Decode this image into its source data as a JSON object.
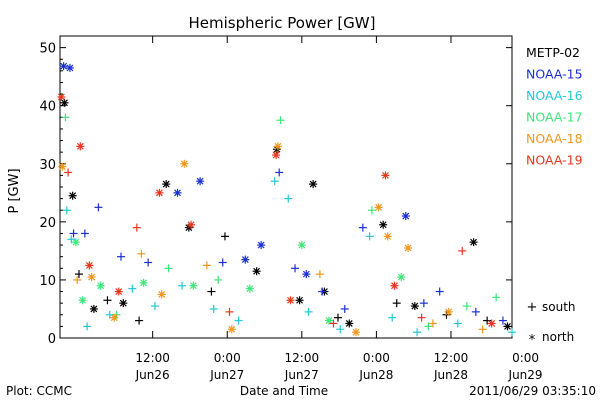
{
  "chart_data": {
    "type": "scatter",
    "title": "Hemispheric Power [GW]",
    "xlabel": "Date and Time",
    "ylabel": "P [GW]",
    "ylim": [
      0,
      52
    ],
    "xlim": [
      0,
      100
    ],
    "yticks": [
      0,
      10,
      20,
      30,
      40,
      50
    ],
    "xticks": [
      {
        "x": 20.5,
        "time": "12:00",
        "date": "Jun26"
      },
      {
        "x": 37.0,
        "time": "0:00",
        "date": "Jun27"
      },
      {
        "x": 53.5,
        "time": "12:00",
        "date": "Jun27"
      },
      {
        "x": 70.0,
        "time": "0:00",
        "date": "Jun28"
      },
      {
        "x": 86.5,
        "time": "12:00",
        "date": "Jun28"
      },
      {
        "x": 103.0,
        "time": "0:00",
        "date": "Jun29"
      }
    ],
    "grid": false,
    "legend_position": "right",
    "series": [
      {
        "name": "METP-02",
        "color": "#000000"
      },
      {
        "name": "NOAA-15",
        "color": "#1a2fd0"
      },
      {
        "name": "NOAA-16",
        "color": "#22c8d8"
      },
      {
        "name": "NOAA-17",
        "color": "#3ee67a"
      },
      {
        "name": "NOAA-18",
        "color": "#f0961e"
      },
      {
        "name": "NOAA-19",
        "color": "#e8351e"
      }
    ],
    "markers": {
      "plus": "south",
      "star": "north"
    },
    "points": [
      {
        "s": 0,
        "m": "star",
        "x": 1.0,
        "y": 40.5
      },
      {
        "s": 0,
        "m": "star",
        "x": 2.8,
        "y": 24.5
      },
      {
        "s": 0,
        "m": "plus",
        "x": 4.2,
        "y": 11.0
      },
      {
        "s": 0,
        "m": "star",
        "x": 7.5,
        "y": 5.0
      },
      {
        "s": 0,
        "m": "plus",
        "x": 10.5,
        "y": 6.5
      },
      {
        "s": 0,
        "m": "star",
        "x": 14.0,
        "y": 6.0
      },
      {
        "s": 0,
        "m": "plus",
        "x": 17.5,
        "y": 3.0
      },
      {
        "s": 0,
        "m": "star",
        "x": 23.5,
        "y": 26.5
      },
      {
        "s": 0,
        "m": "star",
        "x": 28.5,
        "y": 19.0
      },
      {
        "s": 0,
        "m": "plus",
        "x": 33.5,
        "y": 8.0
      },
      {
        "s": 0,
        "m": "plus",
        "x": 36.5,
        "y": 17.5
      },
      {
        "s": 0,
        "m": "star",
        "x": 43.5,
        "y": 11.5
      },
      {
        "s": 0,
        "m": "star",
        "x": 48.0,
        "y": 32.5
      },
      {
        "s": 0,
        "m": "star",
        "x": 53.0,
        "y": 6.5
      },
      {
        "s": 0,
        "m": "star",
        "x": 56.0,
        "y": 26.5
      },
      {
        "s": 0,
        "m": "star",
        "x": 58.5,
        "y": 8.0
      },
      {
        "s": 0,
        "m": "plus",
        "x": 61.5,
        "y": 3.5
      },
      {
        "s": 0,
        "m": "star",
        "x": 64.0,
        "y": 2.5
      },
      {
        "s": 0,
        "m": "star",
        "x": 71.5,
        "y": 19.5
      },
      {
        "s": 0,
        "m": "plus",
        "x": 74.5,
        "y": 6.0
      },
      {
        "s": 0,
        "m": "star",
        "x": 78.5,
        "y": 5.5
      },
      {
        "s": 0,
        "m": "plus",
        "x": 85.5,
        "y": 4.0
      },
      {
        "s": 0,
        "m": "star",
        "x": 91.5,
        "y": 16.5
      },
      {
        "s": 0,
        "m": "plus",
        "x": 94.5,
        "y": 3.0
      },
      {
        "s": 0,
        "m": "star",
        "x": 99.0,
        "y": 2.0
      },
      {
        "s": 1,
        "m": "star",
        "x": 0.8,
        "y": 46.8
      },
      {
        "s": 1,
        "m": "star",
        "x": 2.2,
        "y": 46.5
      },
      {
        "s": 1,
        "m": "plus",
        "x": 3.0,
        "y": 18.0
      },
      {
        "s": 1,
        "m": "plus",
        "x": 5.5,
        "y": 18.0
      },
      {
        "s": 1,
        "m": "plus",
        "x": 8.5,
        "y": 22.5
      },
      {
        "s": 1,
        "m": "plus",
        "x": 13.5,
        "y": 14.0
      },
      {
        "s": 1,
        "m": "plus",
        "x": 19.5,
        "y": 13.0
      },
      {
        "s": 1,
        "m": "star",
        "x": 26.0,
        "y": 25.0
      },
      {
        "s": 1,
        "m": "star",
        "x": 31.0,
        "y": 27.0
      },
      {
        "s": 1,
        "m": "plus",
        "x": 36.0,
        "y": 13.0
      },
      {
        "s": 1,
        "m": "star",
        "x": 41.0,
        "y": 13.5
      },
      {
        "s": 1,
        "m": "star",
        "x": 44.5,
        "y": 16.0
      },
      {
        "s": 1,
        "m": "plus",
        "x": 48.5,
        "y": 28.5
      },
      {
        "s": 1,
        "m": "plus",
        "x": 52.0,
        "y": 12.0
      },
      {
        "s": 1,
        "m": "star",
        "x": 54.5,
        "y": 11.0
      },
      {
        "s": 1,
        "m": "plus",
        "x": 58.0,
        "y": 8.0
      },
      {
        "s": 1,
        "m": "plus",
        "x": 63.0,
        "y": 5.0
      },
      {
        "s": 1,
        "m": "plus",
        "x": 67.0,
        "y": 19.0
      },
      {
        "s": 1,
        "m": "star",
        "x": 76.5,
        "y": 21.0
      },
      {
        "s": 1,
        "m": "plus",
        "x": 80.5,
        "y": 6.0
      },
      {
        "s": 1,
        "m": "plus",
        "x": 84.0,
        "y": 8.0
      },
      {
        "s": 1,
        "m": "plus",
        "x": 92.0,
        "y": 4.5
      },
      {
        "s": 1,
        "m": "plus",
        "x": 98.0,
        "y": 3.0
      },
      {
        "s": 2,
        "m": "plus",
        "x": 1.5,
        "y": 22.0
      },
      {
        "s": 2,
        "m": "plus",
        "x": 2.5,
        "y": 17.0
      },
      {
        "s": 2,
        "m": "plus",
        "x": 6.0,
        "y": 2.0
      },
      {
        "s": 2,
        "m": "plus",
        "x": 11.0,
        "y": 4.0
      },
      {
        "s": 2,
        "m": "plus",
        "x": 16.0,
        "y": 8.5
      },
      {
        "s": 2,
        "m": "plus",
        "x": 21.0,
        "y": 5.5
      },
      {
        "s": 2,
        "m": "plus",
        "x": 27.0,
        "y": 9.0
      },
      {
        "s": 2,
        "m": "plus",
        "x": 34.0,
        "y": 5.0
      },
      {
        "s": 2,
        "m": "plus",
        "x": 39.5,
        "y": 3.0
      },
      {
        "s": 2,
        "m": "plus",
        "x": 47.5,
        "y": 27.0
      },
      {
        "s": 2,
        "m": "plus",
        "x": 50.5,
        "y": 24.0
      },
      {
        "s": 2,
        "m": "plus",
        "x": 55.0,
        "y": 4.5
      },
      {
        "s": 2,
        "m": "plus",
        "x": 62.0,
        "y": 1.5
      },
      {
        "s": 2,
        "m": "plus",
        "x": 68.5,
        "y": 17.5
      },
      {
        "s": 2,
        "m": "plus",
        "x": 73.5,
        "y": 3.5
      },
      {
        "s": 2,
        "m": "plus",
        "x": 79.0,
        "y": 1.0
      },
      {
        "s": 2,
        "m": "plus",
        "x": 88.0,
        "y": 2.5
      },
      {
        "s": 2,
        "m": "plus",
        "x": 100.0,
        "y": 1.0
      },
      {
        "s": 3,
        "m": "plus",
        "x": 1.2,
        "y": 38.0
      },
      {
        "s": 3,
        "m": "star",
        "x": 3.5,
        "y": 16.5
      },
      {
        "s": 3,
        "m": "star",
        "x": 5.0,
        "y": 6.5
      },
      {
        "s": 3,
        "m": "star",
        "x": 9.0,
        "y": 9.0
      },
      {
        "s": 3,
        "m": "plus",
        "x": 12.5,
        "y": 4.0
      },
      {
        "s": 3,
        "m": "star",
        "x": 18.5,
        "y": 9.5
      },
      {
        "s": 3,
        "m": "plus",
        "x": 24.0,
        "y": 12.0
      },
      {
        "s": 3,
        "m": "star",
        "x": 29.5,
        "y": 9.0
      },
      {
        "s": 3,
        "m": "plus",
        "x": 35.0,
        "y": 10.0
      },
      {
        "s": 3,
        "m": "star",
        "x": 42.0,
        "y": 8.5
      },
      {
        "s": 3,
        "m": "plus",
        "x": 48.8,
        "y": 37.5
      },
      {
        "s": 3,
        "m": "star",
        "x": 53.5,
        "y": 16.0
      },
      {
        "s": 3,
        "m": "star",
        "x": 59.5,
        "y": 3.0
      },
      {
        "s": 3,
        "m": "plus",
        "x": 69.0,
        "y": 22.0
      },
      {
        "s": 3,
        "m": "star",
        "x": 75.5,
        "y": 10.5
      },
      {
        "s": 3,
        "m": "plus",
        "x": 81.5,
        "y": 2.0
      },
      {
        "s": 3,
        "m": "plus",
        "x": 90.0,
        "y": 5.5
      },
      {
        "s": 3,
        "m": "plus",
        "x": 96.5,
        "y": 7.0
      },
      {
        "s": 4,
        "m": "star",
        "x": 0.5,
        "y": 29.5
      },
      {
        "s": 4,
        "m": "plus",
        "x": 3.8,
        "y": 10.0
      },
      {
        "s": 4,
        "m": "star",
        "x": 7.0,
        "y": 10.5
      },
      {
        "s": 4,
        "m": "star",
        "x": 12.0,
        "y": 3.5
      },
      {
        "s": 4,
        "m": "plus",
        "x": 18.0,
        "y": 14.5
      },
      {
        "s": 4,
        "m": "star",
        "x": 22.5,
        "y": 7.5
      },
      {
        "s": 4,
        "m": "star",
        "x": 27.5,
        "y": 30.0
      },
      {
        "s": 4,
        "m": "plus",
        "x": 32.5,
        "y": 12.5
      },
      {
        "s": 4,
        "m": "star",
        "x": 38.0,
        "y": 1.5
      },
      {
        "s": 4,
        "m": "star",
        "x": 48.2,
        "y": 33.0
      },
      {
        "s": 4,
        "m": "plus",
        "x": 57.5,
        "y": 11.0
      },
      {
        "s": 4,
        "m": "star",
        "x": 65.5,
        "y": 1.0
      },
      {
        "s": 4,
        "m": "star",
        "x": 70.5,
        "y": 22.5
      },
      {
        "s": 4,
        "m": "star",
        "x": 72.5,
        "y": 17.5
      },
      {
        "s": 4,
        "m": "star",
        "x": 77.0,
        "y": 15.5
      },
      {
        "s": 4,
        "m": "plus",
        "x": 82.5,
        "y": 2.5
      },
      {
        "s": 4,
        "m": "star",
        "x": 86.0,
        "y": 4.5
      },
      {
        "s": 4,
        "m": "plus",
        "x": 93.5,
        "y": 1.5
      },
      {
        "s": 5,
        "m": "star",
        "x": 0.3,
        "y": 41.5
      },
      {
        "s": 5,
        "m": "plus",
        "x": 1.8,
        "y": 28.5
      },
      {
        "s": 5,
        "m": "star",
        "x": 4.5,
        "y": 33.0
      },
      {
        "s": 5,
        "m": "star",
        "x": 6.5,
        "y": 12.5
      },
      {
        "s": 5,
        "m": "star",
        "x": 13.0,
        "y": 8.0
      },
      {
        "s": 5,
        "m": "plus",
        "x": 17.0,
        "y": 19.0
      },
      {
        "s": 5,
        "m": "star",
        "x": 22.0,
        "y": 25.0
      },
      {
        "s": 5,
        "m": "star",
        "x": 29.0,
        "y": 19.5
      },
      {
        "s": 5,
        "m": "plus",
        "x": 37.5,
        "y": 4.5
      },
      {
        "s": 5,
        "m": "star",
        "x": 47.8,
        "y": 31.5
      },
      {
        "s": 5,
        "m": "star",
        "x": 51.0,
        "y": 6.5
      },
      {
        "s": 5,
        "m": "plus",
        "x": 60.5,
        "y": 2.5
      },
      {
        "s": 5,
        "m": "star",
        "x": 72.0,
        "y": 28.0
      },
      {
        "s": 5,
        "m": "star",
        "x": 74.0,
        "y": 9.0
      },
      {
        "s": 5,
        "m": "plus",
        "x": 80.0,
        "y": 3.5
      },
      {
        "s": 5,
        "m": "plus",
        "x": 89.0,
        "y": 15.0
      },
      {
        "s": 5,
        "m": "star",
        "x": 95.5,
        "y": 2.5
      }
    ]
  },
  "footer": {
    "left": "Plot: CCMC",
    "center": "Date and Time",
    "right": "2011/06/29 03:35:10"
  },
  "marker_legend": {
    "plus_label": "south",
    "star_label": "north"
  }
}
